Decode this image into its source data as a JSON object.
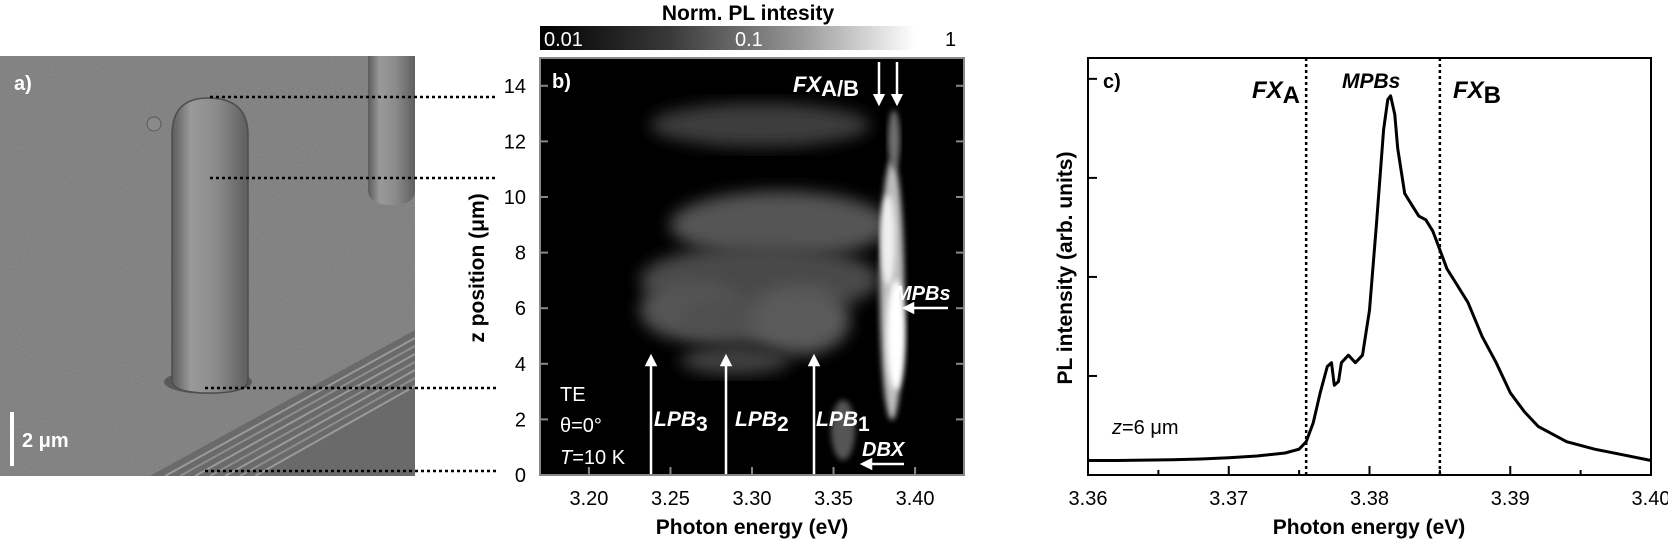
{
  "panel_a": {
    "label": "a)",
    "scale_bar": "2 μm"
  },
  "panel_b": {
    "label": "b)",
    "colorbar": {
      "title": "Norm. PL intesity",
      "ticks": [
        "0.01",
        "0.1",
        "1"
      ]
    },
    "conditions": {
      "pol": "TE",
      "theta": "θ=0°",
      "temp_var": "T",
      "temp_val": "=10 K"
    },
    "annotations": {
      "fx_main": "FX",
      "fx_sub": "A/B",
      "mpbs": "MPBs",
      "dbx": "DBX",
      "lpb3": "LPB",
      "lpb3_sub": "3",
      "lpb2": "LPB",
      "lpb2_sub": "2",
      "lpb1": "LPB",
      "lpb1_sub": "1"
    }
  },
  "panel_c": {
    "label": "c)",
    "annotations": {
      "fxa_main": "FX",
      "fxa_sub": "A",
      "mpbs": "MPBs",
      "fxb_main": "FX",
      "fxb_sub": "B",
      "z_var": "z",
      "z_val": "=6 μm"
    }
  },
  "chart_data": [
    {
      "type": "heatmap",
      "title": "",
      "xlabel": "Photon energy (eV)",
      "ylabel": "z position (μm)",
      "xlim": [
        3.17,
        3.43
      ],
      "ylim": [
        0,
        15
      ],
      "x_ticks": [
        "3.20",
        "3.25",
        "3.30",
        "3.35",
        "3.40"
      ],
      "y_ticks": [
        "0",
        "2",
        "4",
        "6",
        "8",
        "10",
        "12",
        "14"
      ],
      "colorbar_ticks": [
        "0.01",
        "0.1",
        "1"
      ],
      "colormap": "grayscale (black to white)",
      "features": [
        {
          "name": "FXA/B",
          "x": [
            3.378,
            3.389
          ]
        },
        {
          "name": "MPBs",
          "x": 3.39,
          "y": 6
        },
        {
          "name": "DBX",
          "x": 3.37,
          "y": 0.4
        },
        {
          "name": "LPB3",
          "x": 3.251
        },
        {
          "name": "LPB2",
          "x": 3.293
        },
        {
          "name": "LPB1",
          "x": 3.34
        }
      ]
    },
    {
      "type": "line",
      "title": "",
      "xlabel": "Photon energy (eV)",
      "ylabel": "PL intensity (arb. units)",
      "xlim": [
        3.36,
        3.4
      ],
      "x_ticks": [
        "3.36",
        "3.37",
        "3.38",
        "3.39",
        "3.40"
      ],
      "vlines": [
        {
          "name": "FXA",
          "x": 3.3755
        },
        {
          "name": "FXB",
          "x": 3.385
        }
      ],
      "series": [
        {
          "x": [
            3.36,
            3.362,
            3.364,
            3.366,
            3.368,
            3.37,
            3.372,
            3.374,
            3.375,
            3.3755,
            3.376,
            3.3765,
            3.377,
            3.3773,
            3.3775,
            3.3778,
            3.378,
            3.3785,
            3.379,
            3.3795,
            3.38,
            3.3805,
            3.381,
            3.3813,
            3.3815,
            3.3818,
            3.382,
            3.3825,
            3.383,
            3.3835,
            3.384,
            3.3845,
            3.385,
            3.3855,
            3.386,
            3.387,
            3.388,
            3.389,
            3.39,
            3.391,
            3.392,
            3.394,
            3.396,
            3.398,
            3.4
          ],
          "y": [
            0.02,
            0.02,
            0.021,
            0.022,
            0.024,
            0.027,
            0.032,
            0.04,
            0.05,
            0.07,
            0.12,
            0.2,
            0.27,
            0.28,
            0.22,
            0.23,
            0.28,
            0.3,
            0.28,
            0.3,
            0.42,
            0.65,
            0.9,
            0.98,
            0.99,
            0.94,
            0.85,
            0.73,
            0.7,
            0.67,
            0.66,
            0.63,
            0.58,
            0.53,
            0.5,
            0.44,
            0.35,
            0.28,
            0.2,
            0.15,
            0.11,
            0.07,
            0.05,
            0.035,
            0.02
          ]
        }
      ]
    }
  ]
}
